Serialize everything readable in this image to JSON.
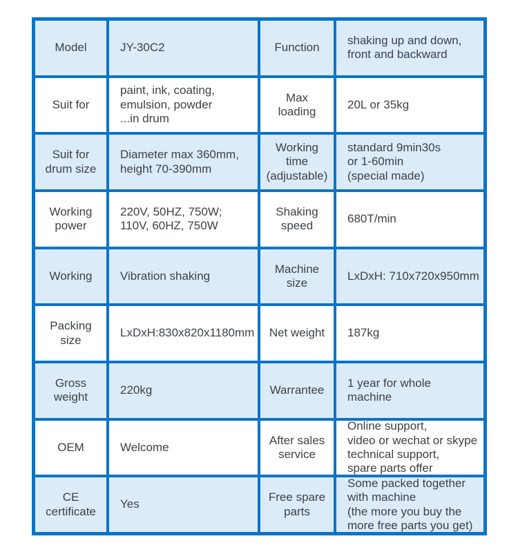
{
  "table": {
    "border_color": "#0b74c9",
    "alt_row_color": "#dcebf8",
    "text_color": "#3e4246",
    "page_background": "#ffffff",
    "rows": [
      {
        "c0": "Model",
        "c1": "JY-30C2",
        "c2": "Function",
        "c3": "shaking up and down,\nfront and backward"
      },
      {
        "c0": "Suit for",
        "c1": "paint, ink, coating,\nemulsion, powder\n...in drum",
        "c2": "Max\nloading",
        "c3": "20L or 35kg"
      },
      {
        "c0": "Suit for\ndrum size",
        "c1": "Diameter max 360mm,\nheight 70-390mm",
        "c2": "Working\ntime\n(adjustable)",
        "c3": "standard 9min30s\nor 1-60min\n(special made)"
      },
      {
        "c0": "Working\npower",
        "c1": "220V, 50HZ, 750W;\n110V, 60HZ, 750W",
        "c2": "Shaking\nspeed",
        "c3": "680T/min"
      },
      {
        "c0": "Working",
        "c1": "Vibration shaking",
        "c2": "Machine\nsize",
        "c3": "LxDxH: 710x720x950mm"
      },
      {
        "c0": "Packing\nsize",
        "c1": "LxDxH:830x820x1180mm",
        "c2": "Net weight",
        "c3": "187kg"
      },
      {
        "c0": "Gross\nweight",
        "c1": "220kg",
        "c2": "Warrantee",
        "c3": "1 year for whole\nmachine"
      },
      {
        "c0": "OEM",
        "c1": "Welcome",
        "c2": "After sales\nservice",
        "c3": "Online support,\nvideo or wechat or skype\ntechnical support,\nspare parts offer"
      },
      {
        "c0": "CE\ncertificate",
        "c1": "Yes",
        "c2": "Free spare\nparts",
        "c3": "Some packed together\nwith machine\n(the more you buy the\nmore free parts you get)"
      }
    ]
  }
}
